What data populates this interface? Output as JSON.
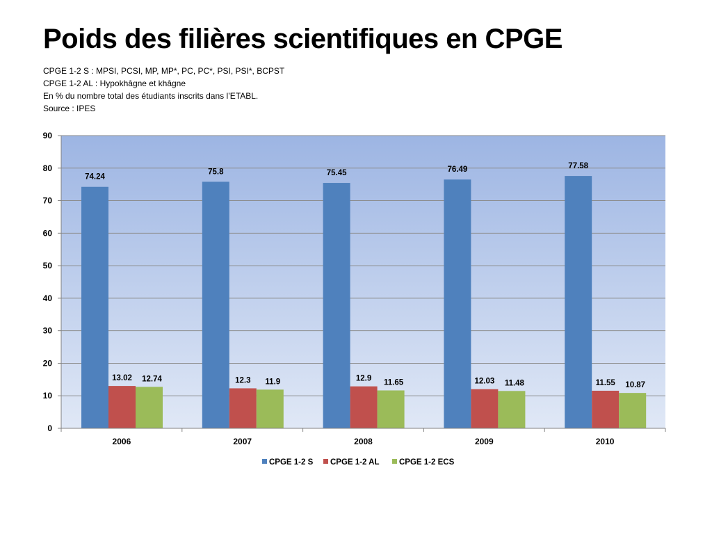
{
  "slide": {
    "title": "Poids des filières scientifiques en CPGE",
    "notes": [
      "CPGE 1-2 S : MPSI, PCSI, MP, MP*, PC, PC*, PSI, PSI*, BCPST",
      "CPGE 1-2 AL : Hypokhâgne et khâgne",
      "En  % du nombre total des étudiants inscrits dans l’ETABL.",
      "Source : IPES"
    ]
  },
  "chart_data": {
    "type": "bar",
    "title": "",
    "xlabel": "",
    "ylabel": "",
    "categories": [
      "2006",
      "2007",
      "2008",
      "2009",
      "2010"
    ],
    "series": [
      {
        "name": "CPGE 1-2 S",
        "color": "#4F81BD",
        "values": [
          74.24,
          75.8,
          75.45,
          76.49,
          77.58
        ],
        "labels": [
          "74.24",
          "75.8",
          "75.45",
          "76.49",
          "77.58"
        ]
      },
      {
        "name": "CPGE 1-2 AL",
        "color": "#C0504D",
        "values": [
          13.02,
          12.3,
          12.9,
          12.03,
          11.55
        ],
        "labels": [
          "13.02",
          "12.3",
          "12.9",
          "12.03",
          "11.55"
        ]
      },
      {
        "name": "CPGE 1-2 ECS",
        "color": "#9BBB59",
        "values": [
          12.74,
          11.9,
          11.65,
          11.48,
          10.87
        ],
        "labels": [
          "12.74",
          "11.9",
          "11.65",
          "11.48",
          "10.87"
        ]
      }
    ],
    "ylim": [
      0,
      90
    ],
    "yticks": [
      "0",
      "10",
      "20",
      "30",
      "40",
      "50",
      "60",
      "70",
      "80",
      "90"
    ],
    "grid": true,
    "legend_position": "bottom",
    "plot_background": [
      "#9DB5E3",
      "#E0E8F6"
    ]
  }
}
